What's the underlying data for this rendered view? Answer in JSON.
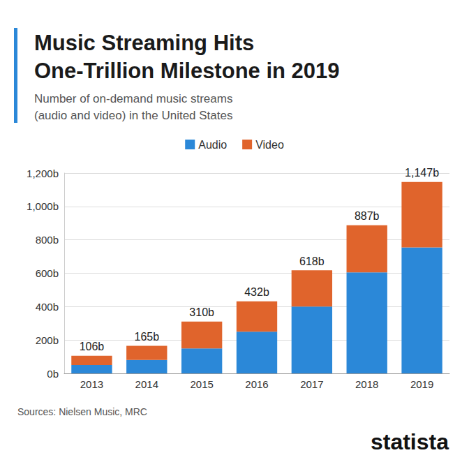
{
  "chart_data": {
    "type": "bar",
    "title": [
      "Music Streaming Hits",
      "One-Trillion Milestone in 2019"
    ],
    "subtitle": [
      "Number of on-demand music streams",
      "(audio and video) in the United States"
    ],
    "source": "Sources: Nielsen Music, MRC",
    "brand": "statista",
    "categories": [
      "2013",
      "2014",
      "2015",
      "2016",
      "2017",
      "2018",
      "2019"
    ],
    "series": [
      {
        "name": "Audio",
        "color": "#2b88d8",
        "values": [
          50,
          80,
          150,
          250,
          400,
          605,
          755
        ]
      },
      {
        "name": "Video",
        "color": "#e0642c",
        "values": [
          56,
          85,
          160,
          182,
          218,
          282,
          392
        ]
      }
    ],
    "stacked": true,
    "totals": [
      106,
      165,
      310,
      432,
      618,
      887,
      1147
    ],
    "total_labels": [
      "106b",
      "165b",
      "310b",
      "432b",
      "618b",
      "887b",
      "1,147b"
    ],
    "ylim": [
      0,
      1200
    ],
    "yticks": [
      {
        "value": 0,
        "label": "0b"
      },
      {
        "value": 200,
        "label": "200b"
      },
      {
        "value": 400,
        "label": "400b"
      },
      {
        "value": 600,
        "label": "600b"
      },
      {
        "value": 800,
        "label": "800b"
      },
      {
        "value": 1000,
        "label": "1,000b"
      },
      {
        "value": 1200,
        "label": "1,200b"
      }
    ],
    "grid": true,
    "legend": "top"
  }
}
